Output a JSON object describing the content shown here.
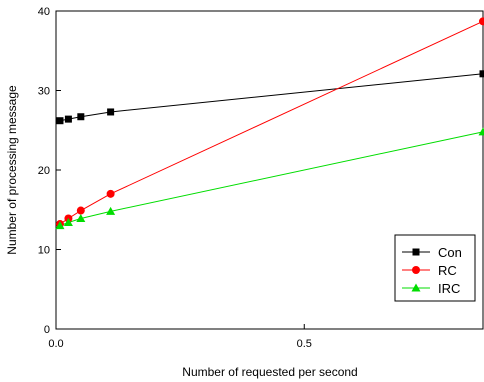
{
  "chart_data": {
    "type": "line",
    "xlabel": "Number of requested per second",
    "ylabel": "Number of processing message",
    "xlim": [
      0,
      0.86
    ],
    "ylim": [
      0,
      40
    ],
    "x_ticks": [
      0.0,
      0.5
    ],
    "x_tick_labels": [
      "0.0",
      "0.5"
    ],
    "y_ticks": [
      0,
      10,
      20,
      30,
      40
    ],
    "y_tick_labels": [
      "0",
      "10",
      "20",
      "30",
      "40"
    ],
    "grid": false,
    "legend_position": "lower-right",
    "series": [
      {
        "name": "Con",
        "color": "#000000",
        "marker": "square",
        "x": [
          0.008,
          0.025,
          0.05,
          0.11,
          0.86
        ],
        "y": [
          26.2,
          26.4,
          26.7,
          27.3,
          32.1
        ]
      },
      {
        "name": "RC",
        "color": "#ff0000",
        "marker": "circle",
        "x": [
          0.008,
          0.025,
          0.05,
          0.11,
          0.86
        ],
        "y": [
          13.2,
          13.9,
          14.9,
          17.0,
          38.7
        ]
      },
      {
        "name": "IRC",
        "color": "#00dd00",
        "marker": "triangle",
        "x": [
          0.008,
          0.025,
          0.05,
          0.11,
          0.86
        ],
        "y": [
          13.0,
          13.4,
          13.9,
          14.8,
          24.8
        ]
      }
    ]
  }
}
